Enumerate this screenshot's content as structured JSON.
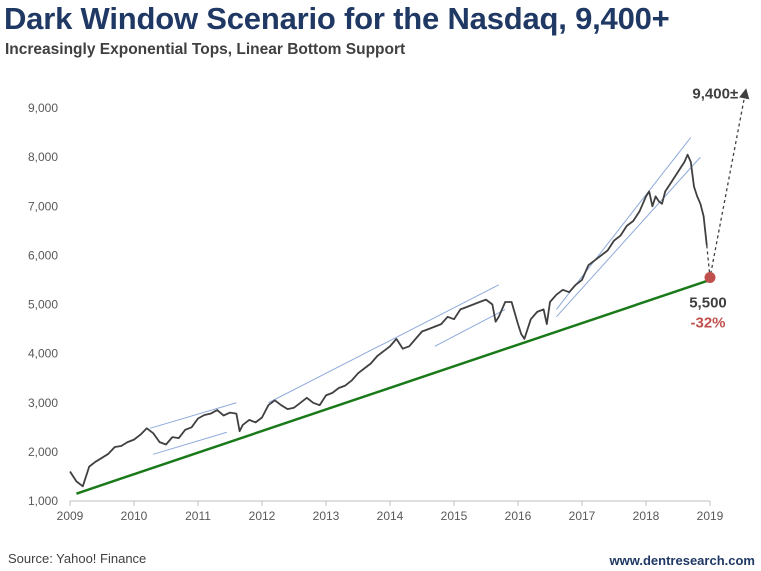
{
  "header": {
    "title": "Dark Window Scenario for the Nasdaq, 9,400+",
    "subtitle": "Increasingly Exponential Tops, Linear Bottom Support"
  },
  "footer": {
    "source": "Source: Yahoo! Finance",
    "credit": "www.dentresearch.com"
  },
  "colors": {
    "title": "#1f3864",
    "price": "#404040",
    "support": "#1a7a1a",
    "channel": "#8eaadb",
    "target_dot": "#c0504d",
    "decline": "#c0504d"
  },
  "chart_data": {
    "type": "line",
    "title": "Dark Window Scenario for the Nasdaq, 9,400+",
    "subtitle": "Increasingly Exponential Tops, Linear Bottom Support",
    "xlabel": "",
    "ylabel": "",
    "x_ticks": [
      "2009",
      "2010",
      "2011",
      "2012",
      "2013",
      "2014",
      "2015",
      "2016",
      "2017",
      "2018",
      "2019"
    ],
    "y_ticks": [
      "1,000",
      "2,000",
      "3,000",
      "4,000",
      "5,000",
      "6,000",
      "7,000",
      "8,000",
      "9,000"
    ],
    "xlim": [
      2009.0,
      2019.0
    ],
    "ylim": [
      1000,
      9600
    ],
    "grid": false,
    "series": [
      {
        "name": "Nasdaq",
        "x": [
          2009.0,
          2009.1,
          2009.2,
          2009.3,
          2009.4,
          2009.5,
          2009.6,
          2009.7,
          2009.8,
          2009.9,
          2010.0,
          2010.1,
          2010.2,
          2010.3,
          2010.4,
          2010.5,
          2010.6,
          2010.7,
          2010.8,
          2010.9,
          2011.0,
          2011.1,
          2011.2,
          2011.3,
          2011.4,
          2011.5,
          2011.6,
          2011.65,
          2011.7,
          2011.8,
          2011.9,
          2012.0,
          2012.1,
          2012.2,
          2012.3,
          2012.4,
          2012.5,
          2012.6,
          2012.7,
          2012.8,
          2012.9,
          2013.0,
          2013.1,
          2013.2,
          2013.3,
          2013.4,
          2013.5,
          2013.6,
          2013.7,
          2013.8,
          2013.9,
          2014.0,
          2014.1,
          2014.2,
          2014.3,
          2014.4,
          2014.5,
          2014.6,
          2014.7,
          2014.8,
          2014.9,
          2015.0,
          2015.1,
          2015.2,
          2015.3,
          2015.4,
          2015.5,
          2015.6,
          2015.65,
          2015.7,
          2015.8,
          2015.9,
          2016.0,
          2016.05,
          2016.1,
          2016.2,
          2016.3,
          2016.4,
          2016.45,
          2016.5,
          2016.6,
          2016.7,
          2016.8,
          2016.9,
          2017.0,
          2017.1,
          2017.2,
          2017.3,
          2017.4,
          2017.5,
          2017.6,
          2017.7,
          2017.8,
          2017.9,
          2018.0,
          2018.05,
          2018.1,
          2018.15,
          2018.2,
          2018.25,
          2018.3,
          2018.4,
          2018.5,
          2018.55,
          2018.6,
          2018.65,
          2018.7,
          2018.75,
          2018.8,
          2018.85,
          2018.9,
          2018.95
        ],
        "values": [
          1600,
          1400,
          1300,
          1700,
          1800,
          1880,
          1960,
          2100,
          2120,
          2200,
          2250,
          2350,
          2480,
          2380,
          2200,
          2150,
          2300,
          2280,
          2450,
          2500,
          2680,
          2750,
          2780,
          2850,
          2740,
          2800,
          2780,
          2420,
          2550,
          2650,
          2600,
          2700,
          2950,
          3050,
          2950,
          2870,
          2900,
          3000,
          3100,
          3000,
          2950,
          3150,
          3200,
          3300,
          3350,
          3450,
          3600,
          3700,
          3800,
          3950,
          4050,
          4150,
          4300,
          4100,
          4150,
          4300,
          4450,
          4500,
          4550,
          4600,
          4750,
          4700,
          4900,
          4950,
          5000,
          5050,
          5100,
          5000,
          4650,
          4750,
          5050,
          5050,
          4600,
          4400,
          4300,
          4700,
          4850,
          4900,
          4600,
          5050,
          5200,
          5300,
          5250,
          5400,
          5500,
          5800,
          5900,
          6000,
          6100,
          6300,
          6400,
          6600,
          6700,
          6900,
          7200,
          7300,
          7000,
          7200,
          7100,
          7050,
          7300,
          7500,
          7700,
          7800,
          7900,
          8050,
          7900,
          7400,
          7200,
          7050,
          6800,
          6200
        ]
      }
    ],
    "support_line": {
      "x": [
        2009.1,
        2019.0
      ],
      "values": [
        1150,
        5500
      ]
    },
    "channels": [
      {
        "x": [
          2010.25,
          2011.6
        ],
        "values": [
          2480,
          3000
        ]
      },
      {
        "x": [
          2010.3,
          2011.45
        ],
        "values": [
          1950,
          2400
        ]
      },
      {
        "x": [
          2012.1,
          2015.7
        ],
        "values": [
          3000,
          5400
        ]
      },
      {
        "x": [
          2014.7,
          2015.8
        ],
        "values": [
          4150,
          4900
        ]
      },
      {
        "x": [
          2016.6,
          2018.7
        ],
        "values": [
          4900,
          8400
        ]
      },
      {
        "x": [
          2016.6,
          2018.85
        ],
        "values": [
          4750,
          8000
        ]
      }
    ],
    "projection": {
      "x": [
        2018.95,
        2019.0,
        2019.55
      ],
      "values": [
        6200,
        5550,
        9300
      ]
    },
    "annotations": {
      "target_label": "9,400±",
      "low_label": "5,500",
      "decline_label": "-32%"
    }
  }
}
